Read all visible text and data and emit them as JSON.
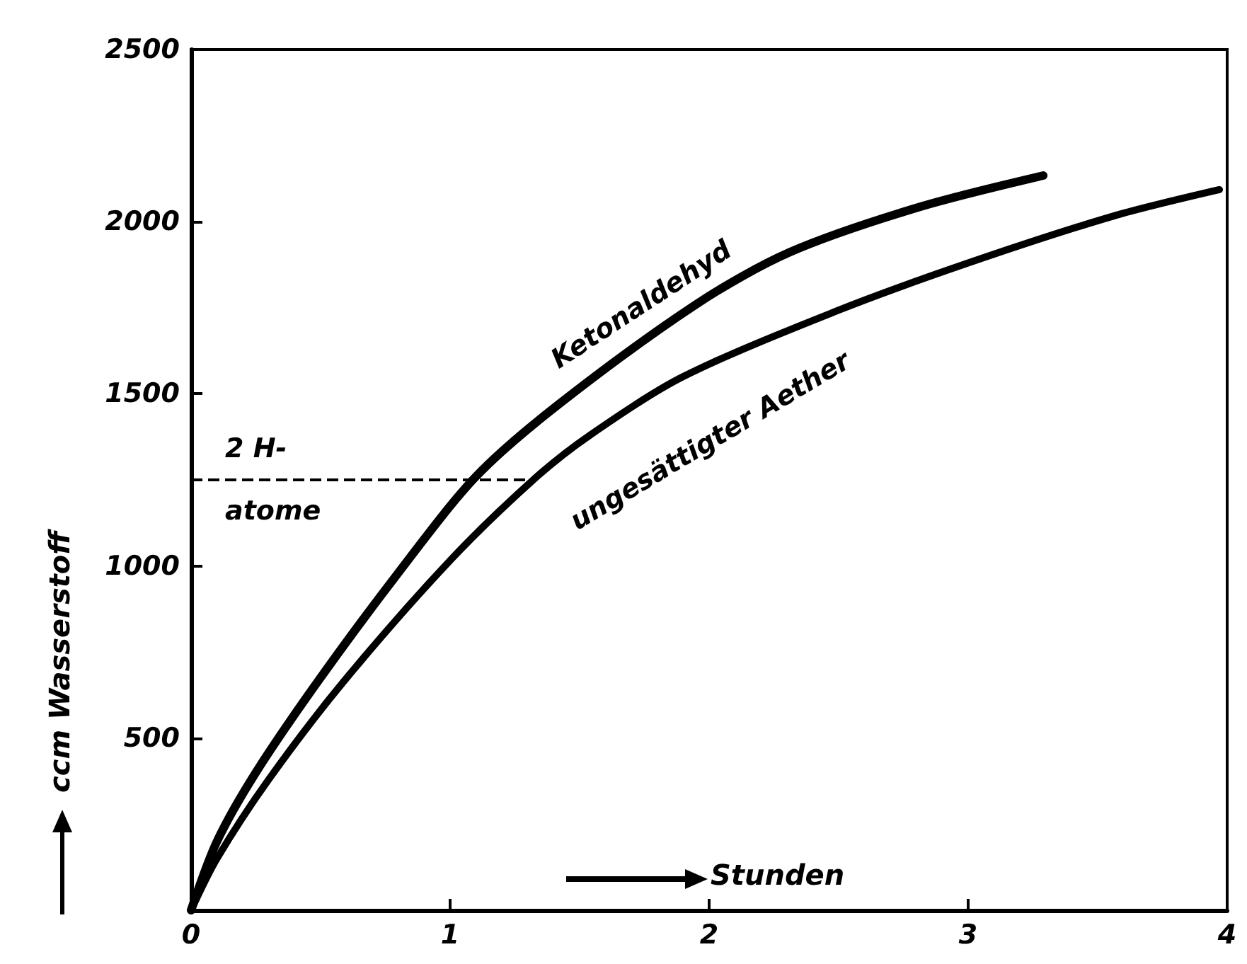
{
  "chart_data": {
    "type": "line",
    "xlabel": "Stunden",
    "ylabel": "ccm Wasserstoff",
    "xlim": [
      0,
      4
    ],
    "xticks": [
      0,
      1,
      2,
      3,
      4
    ],
    "ylim": [
      0,
      2500
    ],
    "yticks": [
      {
        "value": 0,
        "label": null
      },
      500,
      1000,
      1500,
      2000,
      2500
    ],
    "grid": false,
    "legend": false,
    "marker": "none",
    "line_style": "solid",
    "ref_lines": [
      {
        "axis": "y",
        "value": 1250,
        "label": "2 H-\natome",
        "line_style": "dashed"
      }
    ],
    "series": [
      {
        "name": "Ketonaldehyd",
        "color": "#000000",
        "x": [
          0,
          0.1,
          0.25,
          0.49,
          0.8,
          1.1,
          1.42,
          1.95,
          2.31,
          2.8,
          3.29
        ],
        "values": [
          0,
          200,
          400,
          665,
          980,
          1260,
          1470,
          1760,
          1911,
          2040,
          2134
        ]
      },
      {
        "name": "ungesättigter Aether",
        "color": "#000000",
        "x": [
          0,
          0.1,
          0.3,
          0.59,
          1.0,
          1.33,
          1.54,
          1.9,
          2.49,
          3.0,
          3.56,
          3.97
        ],
        "values": [
          0,
          150,
          380,
          665,
          1016,
          1256,
          1380,
          1550,
          1740,
          1880,
          2016,
          2093
        ]
      }
    ]
  }
}
